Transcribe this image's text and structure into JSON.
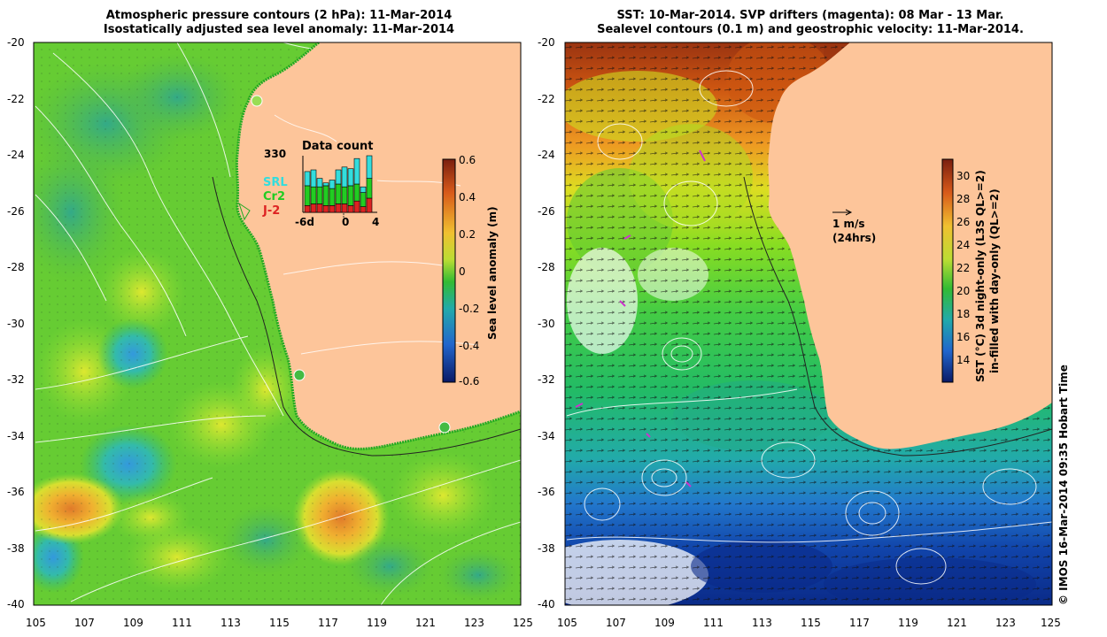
{
  "left_panel": {
    "title_line1": "Atmospheric pressure contours (2 hPa): 11-Mar-2014",
    "title_line2": "Isostatically adjusted sea level anomaly: 11-Mar-2014",
    "colorbar_label": "Sea level anomaly (m)",
    "colorbar_ticks": [
      "0.6",
      "0.4",
      "0.2",
      "0",
      "-0.2",
      "-0.4",
      "-0.6"
    ],
    "inset": {
      "title": "Data count",
      "max_label": "330",
      "legend": [
        {
          "label": "SRL",
          "color": "#33dddd"
        },
        {
          "label": "Cr2",
          "color": "#22cc22"
        },
        {
          "label": "J-2",
          "color": "#dd2222"
        }
      ],
      "x_labels": [
        "-6d",
        "0",
        "4"
      ],
      "bars": [
        {
          "srl": 0.25,
          "cr2": 0.35,
          "j2": 0.12
        },
        {
          "srl": 0.3,
          "cr2": 0.3,
          "j2": 0.15
        },
        {
          "srl": 0.15,
          "cr2": 0.3,
          "j2": 0.15
        },
        {
          "srl": 0.05,
          "cr2": 0.35,
          "j2": 0.12
        },
        {
          "srl": 0.15,
          "cr2": 0.3,
          "j2": 0.12
        },
        {
          "srl": 0.25,
          "cr2": 0.35,
          "j2": 0.15
        },
        {
          "srl": 0.35,
          "cr2": 0.3,
          "j2": 0.15
        },
        {
          "srl": 0.3,
          "cr2": 0.35,
          "j2": 0.12
        },
        {
          "srl": 0.45,
          "cr2": 0.3,
          "j2": 0.2
        },
        {
          "srl": 0.1,
          "cr2": 0.25,
          "j2": 0.1
        },
        {
          "srl": 0.4,
          "cr2": 0.35,
          "j2": 0.25
        }
      ]
    }
  },
  "right_panel": {
    "title_line1": "SST: 10-Mar-2014. SVP drifters (magenta): 08 Mar - 13 Mar.",
    "title_line2": "Sealevel contours (0.1 m) and geostrophic velocity: 11-Mar-2014.",
    "colorbar_label_line1": "SST (°C) 3d night-only (L3S QL>=2)",
    "colorbar_label_line2": "in-filled with day-only (QL>=2)",
    "colorbar_ticks": [
      "30",
      "28",
      "26",
      "24",
      "22",
      "20",
      "18",
      "16",
      "14"
    ],
    "velocity_label": "1 m/s",
    "velocity_sub": "(24hrs)"
  },
  "y_ticks": [
    "-20",
    "-22",
    "-24",
    "-26",
    "-28",
    "-30",
    "-32",
    "-34",
    "-36",
    "-38",
    "-40"
  ],
  "x_ticks": [
    "105",
    "107",
    "109",
    "111",
    "113",
    "115",
    "117",
    "119",
    "121",
    "123",
    "125"
  ],
  "credit": "© IMOS 16-Mar-2014 09:35 Hobart Time",
  "colors": {
    "land": "#fdc59a",
    "sla_bg": "#66cc33",
    "sst_bg": "#33bb66"
  }
}
